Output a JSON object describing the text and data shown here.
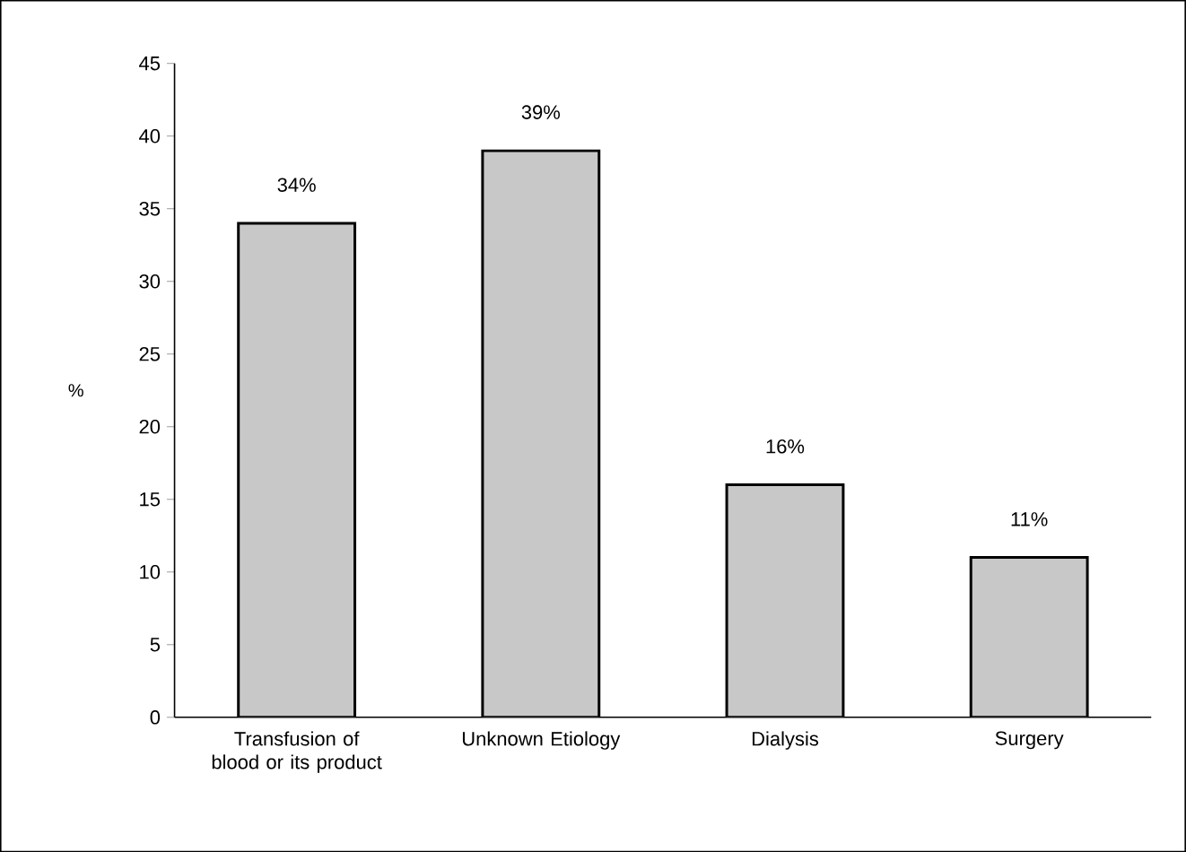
{
  "chart_data": {
    "type": "bar",
    "ylabel": "%",
    "categories": [
      "Transfusion of blood or its product",
      "Unknown Etiology",
      "Dialysis",
      "Surgery"
    ],
    "values": [
      34,
      39,
      16,
      11
    ],
    "value_labels": [
      "34%",
      "39%",
      "16%",
      "11%"
    ],
    "color": "#c8c8c8",
    "ylim": [
      0,
      45
    ],
    "yticks": [
      0,
      5,
      10,
      15,
      20,
      25,
      30,
      35,
      40,
      45
    ],
    "grid": false
  }
}
